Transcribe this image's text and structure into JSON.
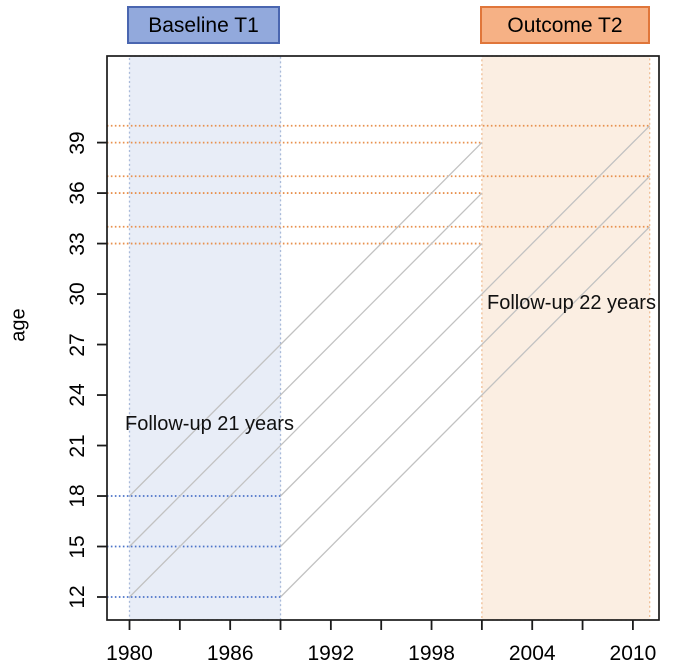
{
  "chart_data": {
    "type": "line",
    "subtype": "lexis-cohort-study-design",
    "title": "",
    "xlabel": "",
    "ylabel": "age",
    "xlim": [
      1978.65,
      2011.8
    ],
    "ylim": [
      10.6,
      44.1
    ],
    "grid": false,
    "x_ticks": [
      1980,
      1983,
      1986,
      1989,
      1992,
      1995,
      1998,
      2001,
      2004,
      2007,
      2010
    ],
    "x_tick_labels": [
      "1980",
      "",
      "1986",
      "",
      "1992",
      "",
      "1998",
      "",
      "2004",
      "",
      "2010"
    ],
    "y_ticks": [
      12,
      15,
      18,
      21,
      24,
      27,
      30,
      33,
      36,
      39
    ],
    "regions": [
      {
        "id": "baseline",
        "label": "Baseline T1",
        "x0": 1980,
        "x1": 1989,
        "fill": "#E8EDF7",
        "edge": "#A9BAD9",
        "header_fill": "#92A9DC",
        "header_border": "#4A66B0"
      },
      {
        "id": "outcome",
        "label": "Outcome T2",
        "x0": 2001,
        "x1": 2011,
        "fill": "#FBEEE2",
        "edge": "#EFBE95",
        "header_fill": "#F6B185",
        "header_border": "#E0763A"
      }
    ],
    "cohort_lines": [
      {
        "start_year": 1980,
        "start_age": 12,
        "end_year": 2001,
        "end_age": 33
      },
      {
        "start_year": 1980,
        "start_age": 15,
        "end_year": 2001,
        "end_age": 36
      },
      {
        "start_year": 1980,
        "start_age": 18,
        "end_year": 2001,
        "end_age": 39
      },
      {
        "start_year": 1989,
        "start_age": 12,
        "end_year": 2011,
        "end_age": 34
      },
      {
        "start_year": 1989,
        "start_age": 15,
        "end_year": 2011,
        "end_age": 37
      },
      {
        "start_year": 1989,
        "start_age": 18,
        "end_year": 2011,
        "end_age": 40
      }
    ],
    "cohort_line_color": "#C2C2C2",
    "baseline_age_guides": {
      "color": "#4C74C8",
      "style": "dotted",
      "ages": [
        12,
        15,
        18
      ],
      "x0": 1978.65,
      "x1": 1989
    },
    "outcome_age_guides": {
      "color": "#E8914E",
      "style": "dotted",
      "lines": [
        {
          "age": 33,
          "x0": 1978.65,
          "x1": 2001
        },
        {
          "age": 36,
          "x0": 1978.65,
          "x1": 2001
        },
        {
          "age": 39,
          "x0": 1978.65,
          "x1": 2001
        },
        {
          "age": 34,
          "x0": 1978.65,
          "x1": 2011
        },
        {
          "age": 37,
          "x0": 1978.65,
          "x1": 2011
        },
        {
          "age": 40,
          "x0": 1978.65,
          "x1": 2011
        }
      ]
    },
    "annotations": [
      {
        "text": "Follow-up 21 years",
        "year": 1979.7,
        "age": 22.2
      },
      {
        "text": "Follow-up 22 years",
        "year": 2001.3,
        "age": 29.5
      }
    ],
    "axis_color": "#1B1B1B"
  }
}
